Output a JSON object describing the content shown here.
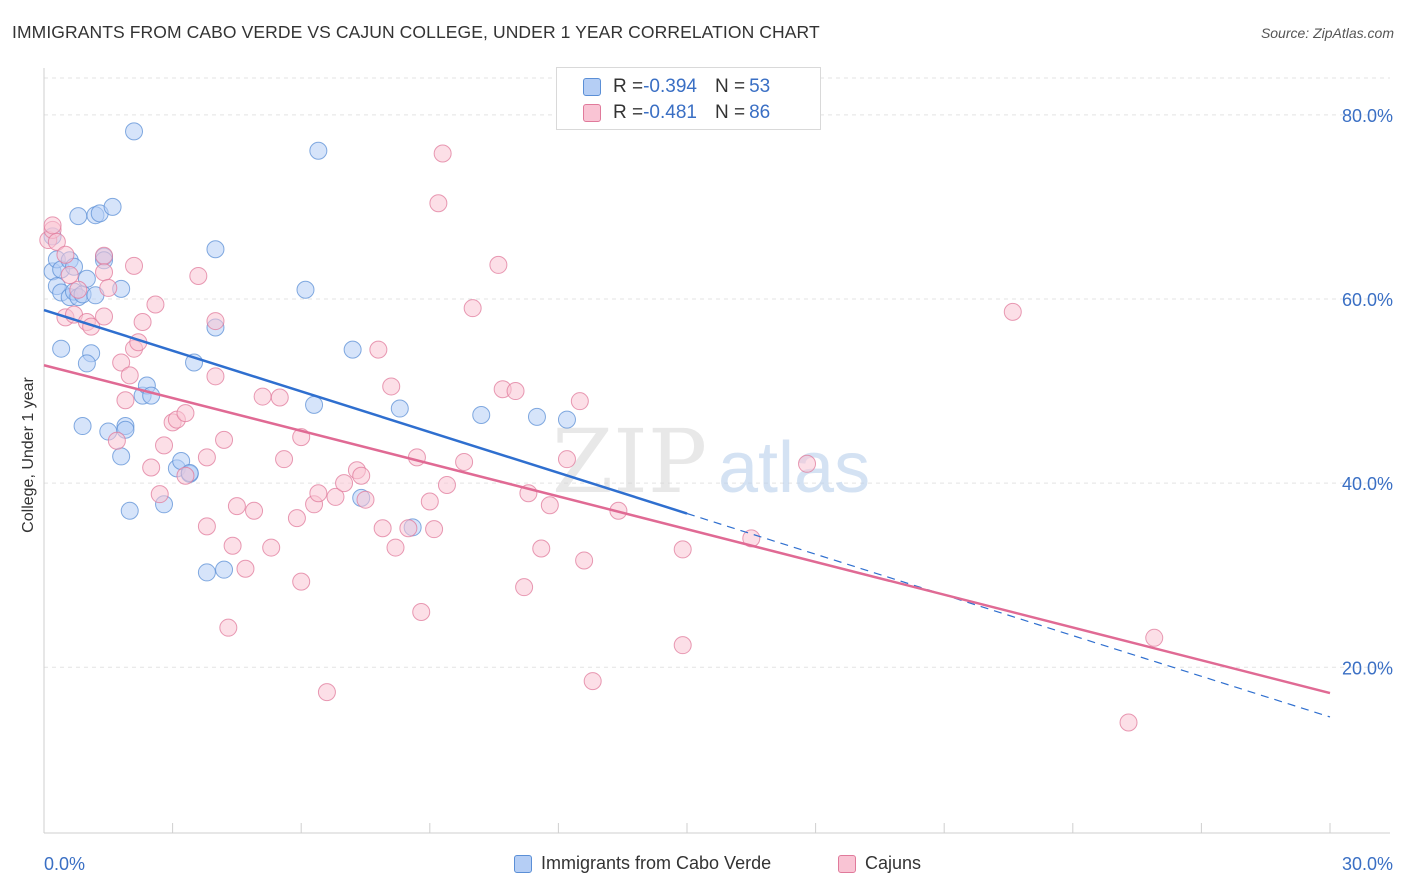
{
  "title": "IMMIGRANTS FROM CABO VERDE VS CAJUN COLLEGE, UNDER 1 YEAR CORRELATION CHART",
  "source": "Source: ZipAtlas.com",
  "watermark": {
    "zip": "ZIP",
    "atlas": "atlas"
  },
  "stats": [
    {
      "r_label": "R = ",
      "r_value": "-0.394",
      "n_label": "N = ",
      "n_value": "53",
      "color": "#5b8fd6",
      "fill": "#b5cef5"
    },
    {
      "r_label": "R = ",
      "r_value": "-0.481",
      "n_label": "N = ",
      "n_value": "86",
      "color": "#e07a9b",
      "fill": "#f9c4d4"
    }
  ],
  "chart_data": {
    "type": "scatter",
    "title": "IMMIGRANTS FROM CABO VERDE VS CAJUN COLLEGE, UNDER 1 YEAR CORRELATION CHART",
    "xlabel": "",
    "ylabel": "College, Under 1 year",
    "xlim": [
      0,
      30
    ],
    "ylim": [
      2,
      84
    ],
    "x_tick_labels": [
      "0.0%",
      "30.0%"
    ],
    "y_ticks": [
      20,
      40,
      60,
      80
    ],
    "y_tick_labels": [
      "20.0%",
      "40.0%",
      "60.0%",
      "80.0%"
    ],
    "grid": true,
    "series": [
      {
        "name": "Immigrants from Cabo Verde",
        "color": "#5b8fd6",
        "fill": "#b5cef5",
        "trend": {
          "x": [
            0,
            15
          ],
          "y": [
            58.8,
            36.7
          ],
          "dash_to_x": 30
        },
        "points": [
          [
            0.2,
            66.8
          ],
          [
            0.2,
            63.0
          ],
          [
            0.3,
            64.3
          ],
          [
            0.4,
            63.2
          ],
          [
            0.3,
            61.4
          ],
          [
            0.4,
            60.7
          ],
          [
            0.6,
            64.2
          ],
          [
            0.7,
            63.5
          ],
          [
            0.6,
            60.2
          ],
          [
            0.7,
            60.8
          ],
          [
            0.8,
            60.2
          ],
          [
            0.9,
            60.5
          ],
          [
            0.8,
            69.0
          ],
          [
            1.0,
            62.2
          ],
          [
            1.2,
            69.1
          ],
          [
            1.3,
            69.3
          ],
          [
            1.6,
            70.0
          ],
          [
            1.4,
            64.6
          ],
          [
            1.4,
            64.2
          ],
          [
            1.8,
            61.1
          ],
          [
            1.2,
            60.4
          ],
          [
            0.4,
            54.6
          ],
          [
            1.1,
            54.1
          ],
          [
            1.0,
            53.0
          ],
          [
            0.9,
            46.2
          ],
          [
            1.5,
            45.6
          ],
          [
            1.8,
            42.9
          ],
          [
            1.9,
            46.2
          ],
          [
            1.9,
            45.8
          ],
          [
            2.0,
            37.0
          ],
          [
            2.3,
            49.5
          ],
          [
            2.4,
            50.6
          ],
          [
            2.5,
            49.5
          ],
          [
            2.8,
            37.7
          ],
          [
            3.1,
            41.6
          ],
          [
            3.2,
            42.4
          ],
          [
            3.4,
            41.0
          ],
          [
            3.4,
            41.1
          ],
          [
            3.5,
            53.1
          ],
          [
            3.8,
            30.3
          ],
          [
            4.0,
            56.9
          ],
          [
            4.0,
            65.4
          ],
          [
            4.2,
            30.6
          ],
          [
            2.1,
            78.2
          ],
          [
            6.1,
            61.0
          ],
          [
            6.3,
            48.5
          ],
          [
            6.4,
            76.1
          ],
          [
            7.2,
            54.5
          ],
          [
            7.4,
            38.4
          ],
          [
            8.3,
            48.1
          ],
          [
            8.6,
            35.2
          ],
          [
            10.2,
            47.4
          ],
          [
            11.5,
            47.2
          ],
          [
            12.2,
            46.9
          ]
        ]
      },
      {
        "name": "Cajuns",
        "color": "#e07a9b",
        "fill": "#f9c4d4",
        "trend": {
          "x": [
            0,
            30
          ],
          "y": [
            52.8,
            17.2
          ]
        },
        "points": [
          [
            0.1,
            66.4
          ],
          [
            0.2,
            67.5
          ],
          [
            0.2,
            68.0
          ],
          [
            0.3,
            66.2
          ],
          [
            0.5,
            64.8
          ],
          [
            0.6,
            62.6
          ],
          [
            0.5,
            58.0
          ],
          [
            0.7,
            58.3
          ],
          [
            1.0,
            57.5
          ],
          [
            1.1,
            57.0
          ],
          [
            0.8,
            61.0
          ],
          [
            1.4,
            64.7
          ],
          [
            1.4,
            62.9
          ],
          [
            1.5,
            61.2
          ],
          [
            1.4,
            58.1
          ],
          [
            1.7,
            44.6
          ],
          [
            1.8,
            53.1
          ],
          [
            1.9,
            49.0
          ],
          [
            2.1,
            63.6
          ],
          [
            2.0,
            51.7
          ],
          [
            2.1,
            54.6
          ],
          [
            2.2,
            55.3
          ],
          [
            2.3,
            57.5
          ],
          [
            2.6,
            59.4
          ],
          [
            2.5,
            41.7
          ],
          [
            2.7,
            38.8
          ],
          [
            2.8,
            44.1
          ],
          [
            3.0,
            46.6
          ],
          [
            3.1,
            46.9
          ],
          [
            3.3,
            47.6
          ],
          [
            3.6,
            62.5
          ],
          [
            3.3,
            40.8
          ],
          [
            3.8,
            42.8
          ],
          [
            3.8,
            35.3
          ],
          [
            4.0,
            51.6
          ],
          [
            4.0,
            57.6
          ],
          [
            4.2,
            44.7
          ],
          [
            4.3,
            24.3
          ],
          [
            4.4,
            33.2
          ],
          [
            4.5,
            37.5
          ],
          [
            4.7,
            30.7
          ],
          [
            4.9,
            37.0
          ],
          [
            5.1,
            49.4
          ],
          [
            5.3,
            33.0
          ],
          [
            5.5,
            49.3
          ],
          [
            5.6,
            42.6
          ],
          [
            5.9,
            36.2
          ],
          [
            6.0,
            45.0
          ],
          [
            6.0,
            29.3
          ],
          [
            6.3,
            37.7
          ],
          [
            6.4,
            38.9
          ],
          [
            6.6,
            17.3
          ],
          [
            6.8,
            38.5
          ],
          [
            7.0,
            40.0
          ],
          [
            7.3,
            41.4
          ],
          [
            7.4,
            40.8
          ],
          [
            7.5,
            38.2
          ],
          [
            7.8,
            54.5
          ],
          [
            7.9,
            35.1
          ],
          [
            8.1,
            50.5
          ],
          [
            8.2,
            33.0
          ],
          [
            8.5,
            35.1
          ],
          [
            8.7,
            42.8
          ],
          [
            8.8,
            26.0
          ],
          [
            9.0,
            38.0
          ],
          [
            9.1,
            35.0
          ],
          [
            9.2,
            70.4
          ],
          [
            9.3,
            75.8
          ],
          [
            9.4,
            39.8
          ],
          [
            9.8,
            42.3
          ],
          [
            10.0,
            59.0
          ],
          [
            10.6,
            63.7
          ],
          [
            10.7,
            50.2
          ],
          [
            11.0,
            50.0
          ],
          [
            11.2,
            28.7
          ],
          [
            11.3,
            38.9
          ],
          [
            11.6,
            32.9
          ],
          [
            11.8,
            37.6
          ],
          [
            12.2,
            42.6
          ],
          [
            12.5,
            48.9
          ],
          [
            12.6,
            31.6
          ],
          [
            12.8,
            18.5
          ],
          [
            13.4,
            37.0
          ],
          [
            14.9,
            32.8
          ],
          [
            14.9,
            22.4
          ],
          [
            16.5,
            34.0
          ],
          [
            17.8,
            42.1
          ],
          [
            22.6,
            58.6
          ],
          [
            25.3,
            14.0
          ],
          [
            25.9,
            23.2
          ]
        ]
      }
    ]
  },
  "legend": [
    {
      "label": "Immigrants from Cabo Verde",
      "color": "#5b8fd6",
      "fill": "#b5cef5"
    },
    {
      "label": "Cajuns",
      "color": "#e07a9b",
      "fill": "#f9c4d4"
    }
  ]
}
